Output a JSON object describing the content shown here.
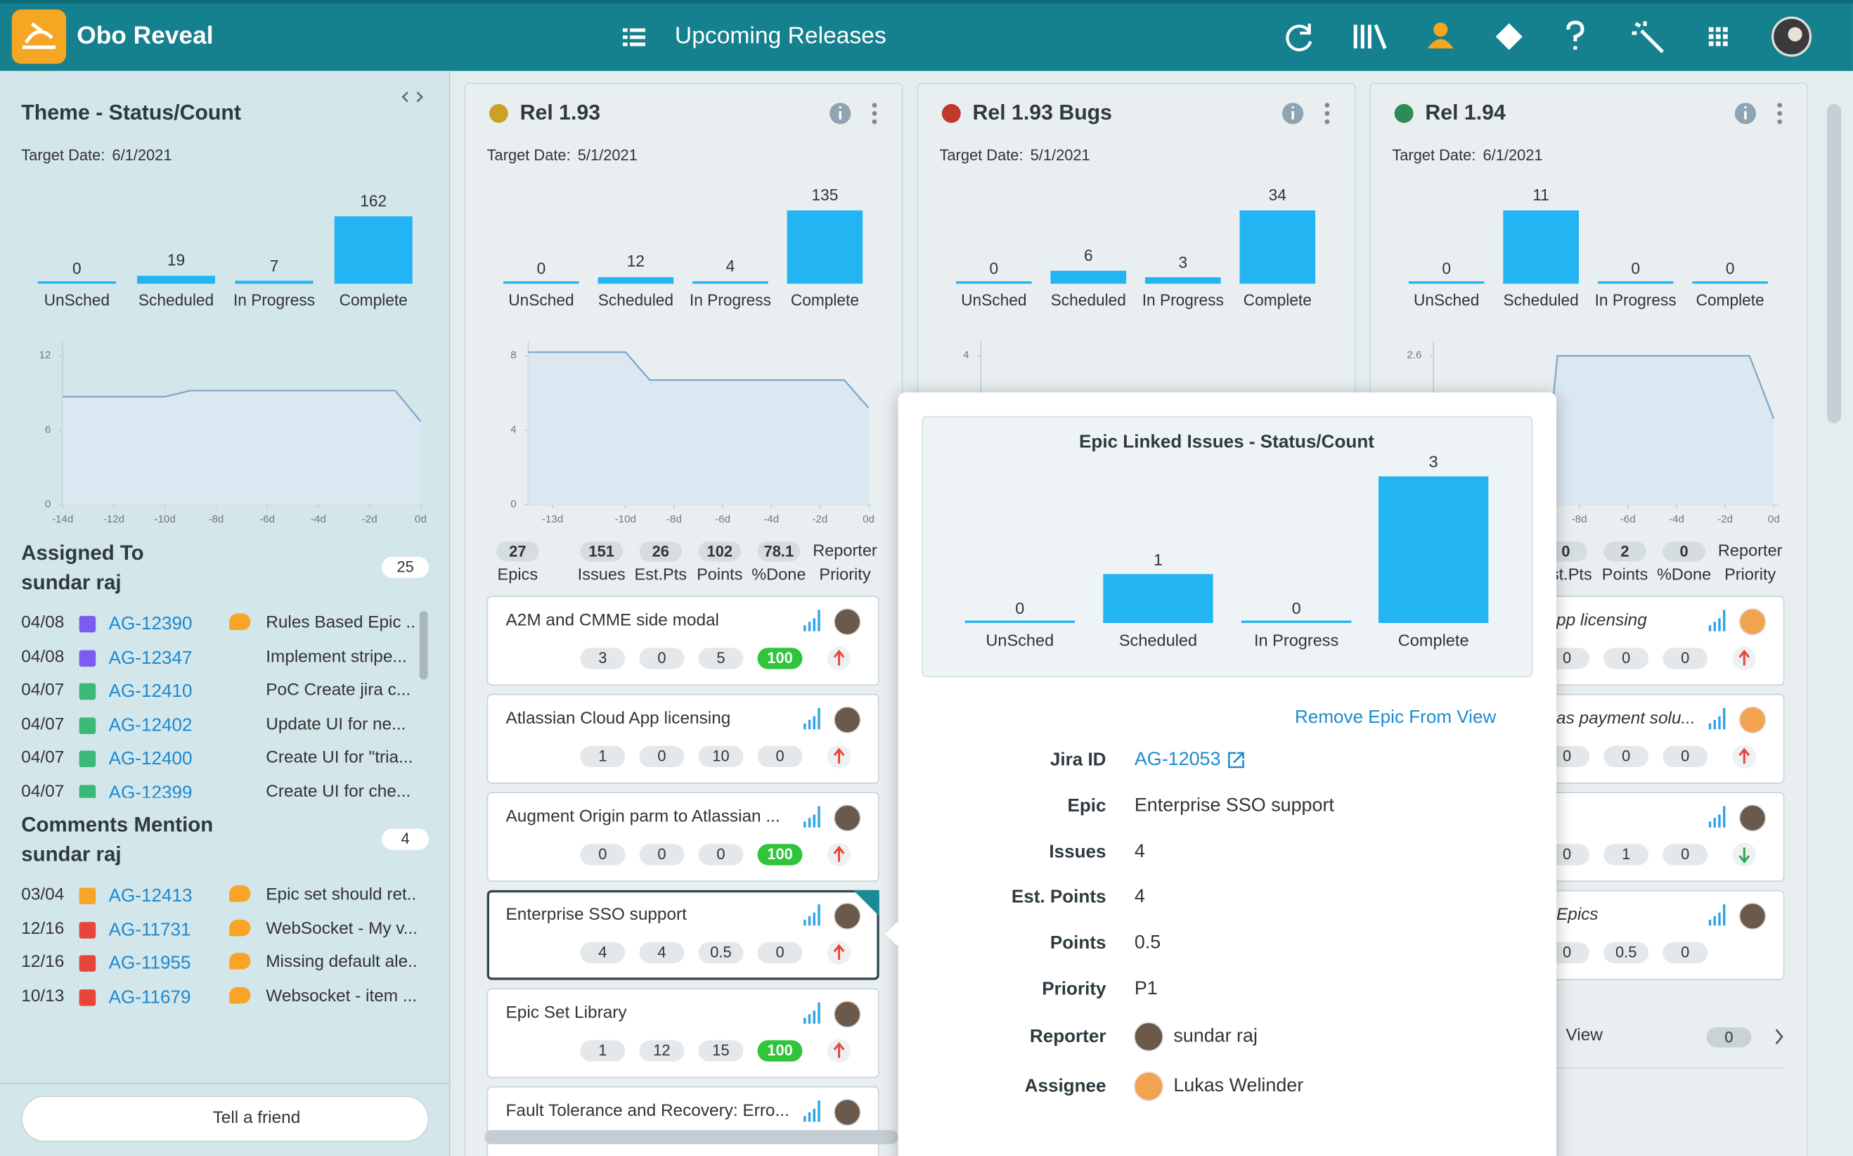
{
  "header": {
    "app_name": "Obo Reveal",
    "view_title": "Upcoming Releases"
  },
  "sidebar": {
    "theme_panel": {
      "title": "Theme - Status/Count",
      "target_label": "Target Date:",
      "target_date": "6/1/2021",
      "status_chart": {
        "type": "bar",
        "categories": [
          "UnSched",
          "Scheduled",
          "In Progress",
          "Complete"
        ],
        "values": [
          0,
          19,
          7,
          162
        ],
        "color": "#22b4f3"
      },
      "burndown": {
        "type": "area",
        "x": [
          -14,
          -10,
          -9,
          -1,
          0
        ],
        "values": [
          8.7,
          8.7,
          9.2,
          9.2,
          6.7
        ],
        "xlim": [
          -14,
          0
        ],
        "ylim": [
          0,
          12
        ],
        "yticks": [
          0,
          6,
          12
        ],
        "xticks": [
          {
            "value": -14,
            "label": "-14d"
          },
          {
            "value": -12,
            "label": "-12d"
          },
          {
            "value": -10,
            "label": "-10d"
          },
          {
            "value": -8,
            "label": "-8d"
          },
          {
            "value": -6,
            "label": "-6d"
          },
          {
            "value": -4,
            "label": "-4d"
          },
          {
            "value": -2,
            "label": "-2d"
          },
          {
            "value": 0,
            "label": "0d"
          }
        ],
        "color": "#7ea6c5"
      }
    },
    "assigned": {
      "title": "Assigned To",
      "user": "sundar raj",
      "count": 25,
      "rows": [
        {
          "date": "04/08",
          "id": "AG-12390",
          "summary": "Rules Based Epic ...",
          "type_color": "#7b5cf0",
          "comment": true
        },
        {
          "date": "04/08",
          "id": "AG-12347",
          "summary": "Implement stripe...",
          "type_color": "#7b5cf0",
          "comment": false
        },
        {
          "date": "04/07",
          "id": "AG-12410",
          "summary": "PoC Create jira c...",
          "type_color": "#3cb878",
          "comment": false
        },
        {
          "date": "04/07",
          "id": "AG-12402",
          "summary": "Update UI for ne...",
          "type_color": "#3cb878",
          "comment": false
        },
        {
          "date": "04/07",
          "id": "AG-12400",
          "summary": "Create UI for \"tria...",
          "type_color": "#3cb878",
          "comment": false
        },
        {
          "date": "04/07",
          "id": "AG-12399",
          "summary": "Create UI for che...",
          "type_color": "#3cb878",
          "comment": false
        }
      ]
    },
    "comments": {
      "title": "Comments Mention",
      "user": "sundar raj",
      "count": 4,
      "rows": [
        {
          "date": "03/04",
          "id": "AG-12413",
          "summary": "Epic set should ret...",
          "type_color": "#f7a427",
          "comment": true
        },
        {
          "date": "12/16",
          "id": "AG-11731",
          "summary": "WebSocket - My v...",
          "type_color": "#e8463b",
          "comment": true
        },
        {
          "date": "12/16",
          "id": "AG-11955",
          "summary": "Missing default ale...",
          "type_color": "#e8463b",
          "comment": true
        },
        {
          "date": "10/13",
          "id": "AG-11679",
          "summary": "Websocket - item ...",
          "type_color": "#e8463b",
          "comment": true
        }
      ]
    },
    "footer_button": "Tell a friend"
  },
  "releases": [
    {
      "title": "Rel 1.93",
      "target_label": "Target Date:",
      "target_date": "5/1/2021",
      "status_chart": {
        "type": "bar",
        "categories": [
          "UnSched",
          "Scheduled",
          "In Progress",
          "Complete"
        ],
        "values": [
          0,
          12,
          4,
          135
        ],
        "color": "#22b4f3"
      },
      "burndown": {
        "type": "area",
        "x": [
          -14,
          -10,
          -9,
          -1,
          0
        ],
        "values": [
          8.2,
          8.2,
          6.7,
          6.7,
          5.2
        ],
        "xlim": [
          -14,
          0
        ],
        "ylim": [
          0,
          8
        ],
        "yticks": [
          0,
          4,
          8
        ],
        "xticks": [
          {
            "value": -13,
            "label": "-13d"
          },
          {
            "value": -10,
            "label": "-10d"
          },
          {
            "value": -8,
            "label": "-8d"
          },
          {
            "value": -6,
            "label": "-6d"
          },
          {
            "value": -4,
            "label": "-4d"
          },
          {
            "value": -2,
            "label": "-2d"
          },
          {
            "value": 0,
            "label": "0d"
          }
        ],
        "color": "#7ea6c5"
      },
      "stats": [
        {
          "value": 27,
          "label": "Epics"
        },
        {
          "value": 151,
          "label": "Issues"
        },
        {
          "value": 26,
          "label": "Est.Pts"
        },
        {
          "value": 102,
          "label": "Points"
        },
        {
          "value": 78.1,
          "label": "%Done"
        }
      ],
      "stats_extra": [
        "Reporter",
        "Priority"
      ],
      "cards": [
        {
          "name": "A2M and CMME side modal",
          "values": [
            3,
            0,
            5,
            100
          ],
          "arrow": "up"
        },
        {
          "name": "Atlassian Cloud App licensing",
          "values": [
            1,
            0,
            10,
            0
          ],
          "arrow": "up"
        },
        {
          "name": "Augment Origin parm to Atlassian ...",
          "values": [
            0,
            0,
            0,
            100
          ],
          "arrow": "up"
        },
        {
          "name": "Enterprise SSO support",
          "values": [
            4,
            4,
            0.5,
            0
          ],
          "arrow": "up",
          "selected": true
        },
        {
          "name": "Epic Set Library",
          "values": [
            1,
            12,
            15,
            100
          ],
          "arrow": "up"
        },
        {
          "name": "Fault Tolerance and Recovery: Erro...",
          "values": []
        }
      ]
    },
    {
      "title": "Rel 1.93 Bugs",
      "target_label": "Target Date:",
      "target_date": "5/1/2021",
      "status_chart": {
        "type": "bar",
        "categories": [
          "UnSched",
          "Scheduled",
          "In Progress",
          "Complete"
        ],
        "values": [
          0,
          6,
          3,
          34
        ],
        "color": "#22b4f3"
      },
      "burndown": {
        "type": "area",
        "ylim": [
          0,
          4
        ],
        "yticks": [
          4
        ],
        "color": "#7ea6c5"
      },
      "stats": [],
      "cards": []
    },
    {
      "title": "Rel 1.94",
      "target_label": "Target Date:",
      "target_date": "6/1/2021",
      "status_chart": {
        "type": "bar",
        "categories": [
          "UnSched",
          "Scheduled",
          "In Progress",
          "Complete"
        ],
        "values": [
          0,
          11,
          0,
          0
        ],
        "color": "#22b4f3"
      },
      "burndown": {
        "type": "area",
        "x": [
          -9.5,
          -8.9,
          -1,
          0
        ],
        "values": [
          0,
          2.6,
          2.6,
          1.5
        ],
        "xlim": [
          -14,
          0
        ],
        "ylim": [
          0,
          2.6
        ],
        "yticks": [
          2.6
        ],
        "xticks": [
          {
            "value": -8,
            "label": "-8d"
          },
          {
            "value": -6,
            "label": "-6d"
          },
          {
            "value": -4,
            "label": "-4d"
          },
          {
            "value": -2,
            "label": "-2d"
          },
          {
            "value": 0,
            "label": "0d"
          }
        ],
        "color": "#7ea6c5"
      },
      "stats": [
        {
          "value": 0,
          "label": "Est.Pts"
        },
        {
          "value": 2,
          "label": "Points"
        },
        {
          "value": 0,
          "label": "%Done"
        }
      ],
      "stats_extra": [
        "Reporter",
        "Priority"
      ],
      "cards": [
        {
          "name": "pp licensing",
          "values": [
            0,
            0,
            0
          ],
          "arrow": "up"
        },
        {
          "name": "as payment solu...",
          "values": [
            0,
            0,
            0
          ],
          "arrow": "up"
        },
        {
          "values": [
            0,
            1,
            0
          ],
          "arrow": "down"
        },
        {
          "name": "Epics",
          "values": [
            0,
            0.5,
            0
          ]
        }
      ],
      "footer": {
        "label": "View",
        "count": 0
      }
    }
  ],
  "popup": {
    "chart_title": "Epic Linked Issues - Status/Count",
    "status_chart": {
      "type": "bar",
      "categories": [
        "UnSched",
        "Scheduled",
        "In Progress",
        "Complete"
      ],
      "values": [
        0,
        1,
        0,
        3
      ],
      "color": "#22b4f3"
    },
    "action": "Remove Epic From View",
    "fields": [
      {
        "label": "Jira ID",
        "value": "AG-12053"
      },
      {
        "label": "Epic",
        "value": "Enterprise SSO support"
      },
      {
        "label": "Issues",
        "value": 4
      },
      {
        "label": "Est. Points",
        "value": 4
      },
      {
        "label": "Points",
        "value": 0.5
      },
      {
        "label": "Priority",
        "value": "P1"
      },
      {
        "label": "Reporter",
        "value": "sundar raj"
      },
      {
        "label": "Assignee",
        "value": "Lukas Welinder"
      }
    ]
  }
}
